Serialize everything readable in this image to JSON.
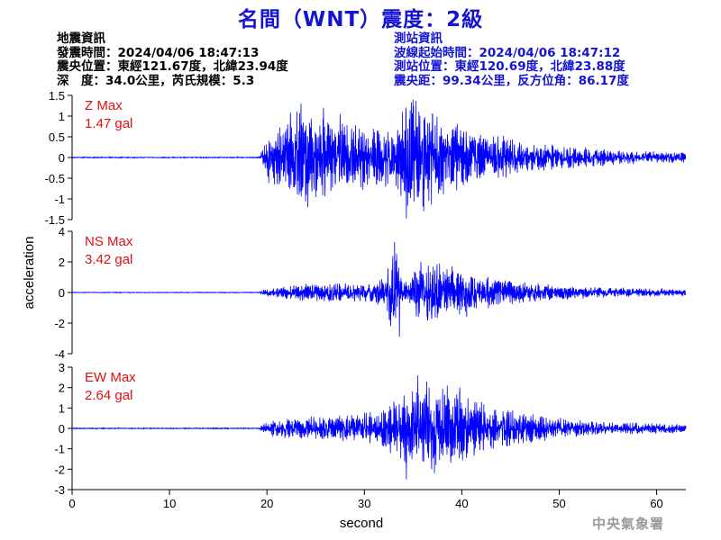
{
  "header": {
    "title": "名間（WNT）震度：2級"
  },
  "quake_info": {
    "heading": "地震資訊",
    "origin_time": "發震時間：2024/04/06 18:47:13",
    "epicenter": "震央位置：東經121.67度，北緯23.94度",
    "depth_magnitude": "深　度：34.0公里，芮氏規模：5.3"
  },
  "station_info": {
    "heading": "測站資訊",
    "wave_start": "波線起始時間：2024/04/06 18:47:12",
    "location": "測站位置：東經120.69度，北緯23.88度",
    "distance": "震央距：99.34公里，反方位角：86.17度"
  },
  "footer": {
    "agency": "中央氣象署"
  },
  "chart_data": {
    "type": "line",
    "xlabel": "second",
    "ylabel": "acceleration",
    "xlim": [
      0,
      63
    ],
    "xticks": [
      0,
      10,
      20,
      30,
      40,
      50,
      60
    ],
    "line_color": "#0000ff",
    "label_color": "#e01010",
    "panels": [
      {
        "name": "Z",
        "max_label": "Z Max",
        "max_value": "1.47 gal",
        "peak": 1.47,
        "ylim": [
          -1.5,
          1.5
        ],
        "yticks": [
          -1.5,
          -1,
          -0.5,
          0,
          0.5,
          1,
          1.5
        ],
        "ytick_labels": [
          "-1.5",
          "-1",
          "-0.5",
          "0",
          "0.5",
          "1",
          "1.5"
        ],
        "envelope": [
          [
            0,
            0.01
          ],
          [
            19.2,
            0.01
          ],
          [
            19.5,
            0.15
          ],
          [
            20,
            0.45
          ],
          [
            21,
            0.6
          ],
          [
            23,
            0.95
          ],
          [
            25,
            0.8
          ],
          [
            27,
            0.7
          ],
          [
            30,
            0.6
          ],
          [
            33,
            0.55
          ],
          [
            34,
            0.95
          ],
          [
            35,
            1.2
          ],
          [
            36,
            1.0
          ],
          [
            38,
            0.75
          ],
          [
            40,
            0.6
          ],
          [
            43,
            0.45
          ],
          [
            47,
            0.3
          ],
          [
            52,
            0.2
          ],
          [
            57,
            0.13
          ],
          [
            63,
            0.1
          ]
        ],
        "spikes": [
          [
            23.5,
            1.3
          ],
          [
            24.2,
            -1.2
          ],
          [
            25.8,
            1.2
          ],
          [
            34.3,
            -1.47
          ],
          [
            35.0,
            1.4
          ],
          [
            36.1,
            -1.3
          ],
          [
            37.0,
            1.05
          ],
          [
            27.5,
            1.05
          ]
        ]
      },
      {
        "name": "NS",
        "max_label": "NS Max",
        "max_value": "3.42 gal",
        "peak": 3.42,
        "ylim": [
          -4,
          4
        ],
        "yticks": [
          -4,
          -2,
          0,
          2,
          4
        ],
        "ytick_labels": [
          "-4",
          "-2",
          "0",
          "2",
          "4"
        ],
        "envelope": [
          [
            0,
            0.02
          ],
          [
            19.2,
            0.02
          ],
          [
            19.6,
            0.15
          ],
          [
            21,
            0.3
          ],
          [
            24,
            0.45
          ],
          [
            28,
            0.5
          ],
          [
            31,
            0.6
          ],
          [
            32.2,
            0.9
          ],
          [
            32.8,
            2.4
          ],
          [
            33.3,
            2.0
          ],
          [
            33.9,
            0.6
          ],
          [
            34.6,
            0.5
          ],
          [
            35.2,
            1.4
          ],
          [
            37,
            1.6
          ],
          [
            39,
            1.3
          ],
          [
            41,
            1.0
          ],
          [
            44,
            0.7
          ],
          [
            48,
            0.45
          ],
          [
            54,
            0.28
          ],
          [
            63,
            0.18
          ]
        ],
        "spikes": [
          [
            33.1,
            3.3
          ],
          [
            33.6,
            -2.9
          ],
          [
            32.7,
            -2.2
          ],
          [
            35.8,
            2.0
          ],
          [
            36.5,
            -1.8
          ],
          [
            39.0,
            1.7
          ],
          [
            40.5,
            -1.6
          ]
        ]
      },
      {
        "name": "EW",
        "max_label": "EW Max",
        "max_value": "2.64 gal",
        "peak": 2.64,
        "ylim": [
          -3,
          3
        ],
        "yticks": [
          -3,
          -2,
          -1,
          0,
          1,
          2,
          3
        ],
        "ytick_labels": [
          "-3",
          "-2",
          "-1",
          "0",
          "1",
          "2",
          "3"
        ],
        "envelope": [
          [
            0,
            0.02
          ],
          [
            19.2,
            0.02
          ],
          [
            19.6,
            0.2
          ],
          [
            21,
            0.35
          ],
          [
            24,
            0.45
          ],
          [
            28,
            0.5
          ],
          [
            31,
            0.65
          ],
          [
            33,
            1.1
          ],
          [
            35,
            1.6
          ],
          [
            37,
            1.6
          ],
          [
            39,
            1.5
          ],
          [
            41,
            1.2
          ],
          [
            44,
            0.8
          ],
          [
            48,
            0.5
          ],
          [
            53,
            0.3
          ],
          [
            58,
            0.22
          ],
          [
            63,
            0.18
          ]
        ],
        "spikes": [
          [
            34.3,
            -2.5
          ],
          [
            35.5,
            2.6
          ],
          [
            36.4,
            2.3
          ],
          [
            37.2,
            -2.2
          ],
          [
            38.5,
            2.1
          ],
          [
            39.8,
            2.0
          ],
          [
            36.9,
            -2.0
          ]
        ]
      }
    ]
  }
}
